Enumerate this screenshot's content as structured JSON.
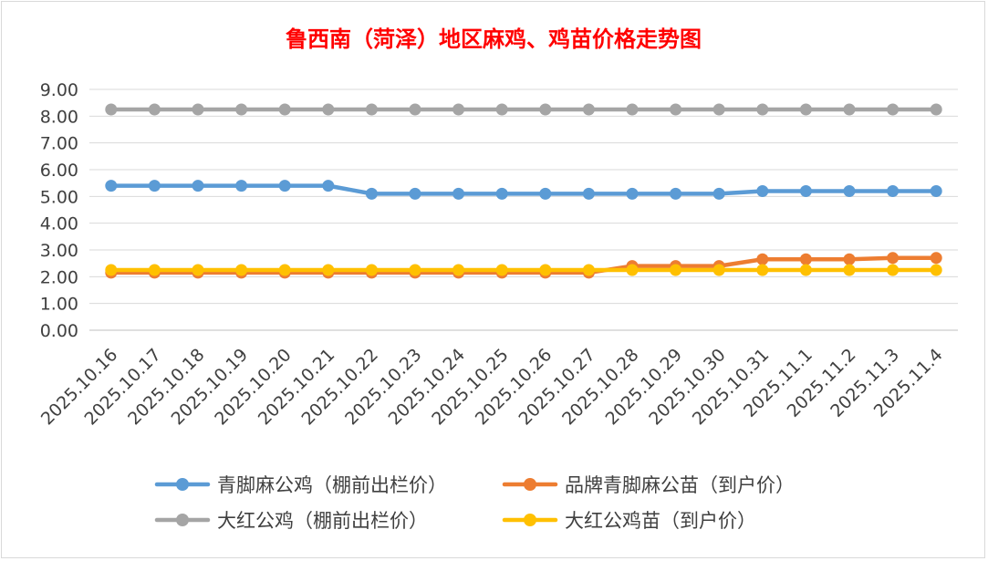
{
  "chart_data": {
    "type": "line",
    "title": "鲁西南（菏泽）地区麻鸡、鸡苗价格走势图",
    "xlabel": "",
    "ylabel": "",
    "ylim": [
      0,
      9
    ],
    "y_ticks": [
      "0.00",
      "1.00",
      "2.00",
      "3.00",
      "4.00",
      "5.00",
      "6.00",
      "7.00",
      "8.00",
      "9.00"
    ],
    "grid": true,
    "legend_position": "bottom",
    "categories": [
      "2025.10.16",
      "2025.10.17",
      "2025.10.18",
      "2025.10.19",
      "2025.10.20",
      "2025.10.21",
      "2025.10.22",
      "2025.10.23",
      "2025.10.24",
      "2025.10.25",
      "2025.10.26",
      "2025.10.27",
      "2025.10.28",
      "2025.10.29",
      "2025.10.30",
      "2025.10.31",
      "2025.11.1",
      "2025.11.2",
      "2025.11.3",
      "2025.11.4"
    ],
    "series": [
      {
        "name": "青脚麻公鸡（棚前出栏价）",
        "color": "#5b9bd5",
        "values": [
          5.4,
          5.4,
          5.4,
          5.4,
          5.4,
          5.4,
          5.1,
          5.1,
          5.1,
          5.1,
          5.1,
          5.1,
          5.1,
          5.1,
          5.1,
          5.2,
          5.2,
          5.2,
          5.2,
          5.2
        ]
      },
      {
        "name": "品牌青脚麻公苗（到户价）",
        "color": "#ed7d31",
        "values": [
          2.15,
          2.15,
          2.15,
          2.15,
          2.15,
          2.15,
          2.15,
          2.15,
          2.15,
          2.15,
          2.15,
          2.15,
          2.4,
          2.4,
          2.4,
          2.65,
          2.65,
          2.65,
          2.7,
          2.7
        ]
      },
      {
        "name": "大红公鸡（棚前出栏价）",
        "color": "#a5a5a5",
        "values": [
          8.25,
          8.25,
          8.25,
          8.25,
          8.25,
          8.25,
          8.25,
          8.25,
          8.25,
          8.25,
          8.25,
          8.25,
          8.25,
          8.25,
          8.25,
          8.25,
          8.25,
          8.25,
          8.25,
          8.25
        ]
      },
      {
        "name": "大红公鸡苗（到户价）",
        "color": "#ffc000",
        "values": [
          2.25,
          2.25,
          2.25,
          2.25,
          2.25,
          2.25,
          2.25,
          2.25,
          2.25,
          2.25,
          2.25,
          2.25,
          2.25,
          2.25,
          2.25,
          2.25,
          2.25,
          2.25,
          2.25,
          2.25
        ]
      }
    ]
  }
}
